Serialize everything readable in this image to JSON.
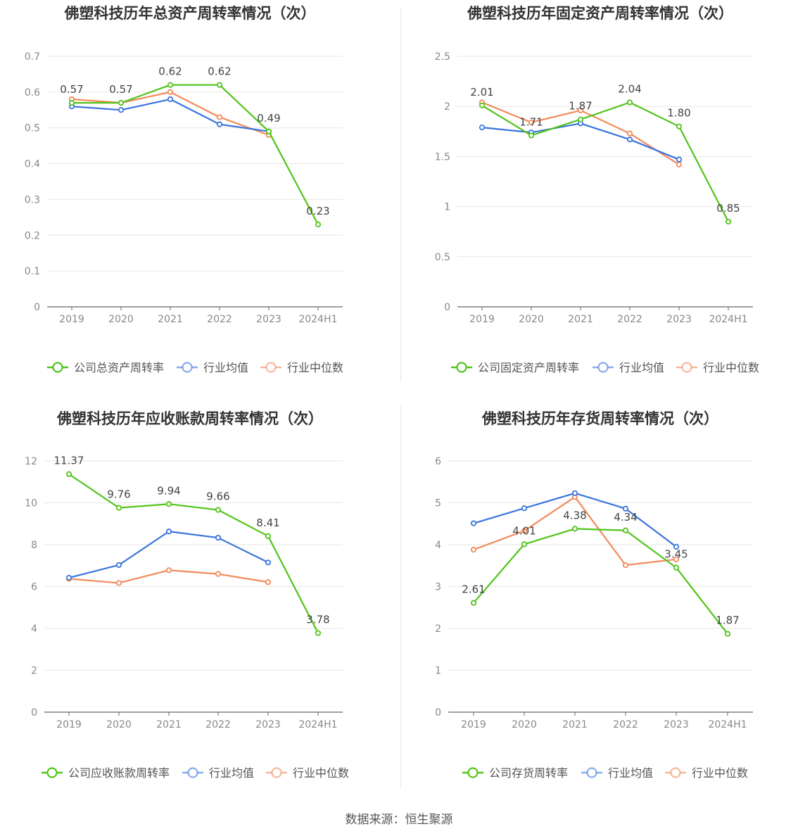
{
  "source": "数据来源：恒生聚源",
  "colors": {
    "company": "#52c41a",
    "avg": "#3a75dd",
    "median": "#f28a5b",
    "grid": "#e6e6e6",
    "axis": "#666666",
    "text": "#555555"
  },
  "chart_data": [
    {
      "type": "line",
      "title": "佛塑科技历年总资产周转率情况（次）",
      "categories": [
        "2019",
        "2020",
        "2021",
        "2022",
        "2023",
        "2024H1"
      ],
      "ylim": [
        0,
        0.7
      ],
      "yticks": [
        0,
        0.1,
        0.2,
        0.3,
        0.4,
        0.5,
        0.6,
        0.7
      ],
      "ytick_labels": [
        "0",
        "0.1",
        "0.2",
        "0.3",
        "0.4",
        "0.5",
        "0.6",
        "0.7"
      ],
      "grid": true,
      "legend_position": "bottom",
      "series": [
        {
          "name": "公司总资产周转率",
          "role": "company",
          "values": [
            0.57,
            0.57,
            0.62,
            0.62,
            0.49,
            0.23
          ],
          "labels": [
            "0.57",
            "0.57",
            "0.62",
            "0.62",
            "0.49",
            "0.23"
          ]
        },
        {
          "name": "行业均值",
          "role": "avg",
          "values": [
            0.56,
            0.55,
            0.58,
            0.51,
            0.49,
            null
          ]
        },
        {
          "name": "行业中位数",
          "role": "median",
          "values": [
            0.58,
            0.57,
            0.6,
            0.53,
            0.48,
            null
          ]
        }
      ]
    },
    {
      "type": "line",
      "title": "佛塑科技历年固定资产周转率情况（次）",
      "categories": [
        "2019",
        "2020",
        "2021",
        "2022",
        "2023",
        "2024H1"
      ],
      "ylim": [
        0,
        2.5
      ],
      "yticks": [
        0,
        0.5,
        1,
        1.5,
        2,
        2.5
      ],
      "ytick_labels": [
        "0",
        "0.5",
        "1",
        "1.5",
        "2",
        "2.5"
      ],
      "grid": true,
      "legend_position": "bottom",
      "series": [
        {
          "name": "公司固定资产周转率",
          "role": "company",
          "values": [
            2.01,
            1.71,
            1.87,
            2.04,
            1.8,
            0.85
          ],
          "labels": [
            "2.01",
            "1.71",
            "1.87",
            "2.04",
            "1.80",
            "0.85"
          ]
        },
        {
          "name": "行业均值",
          "role": "avg",
          "values": [
            1.79,
            1.74,
            1.83,
            1.67,
            1.47,
            null
          ]
        },
        {
          "name": "行业中位数",
          "role": "median",
          "values": [
            2.04,
            1.84,
            1.96,
            1.73,
            1.42,
            null
          ]
        }
      ]
    },
    {
      "type": "line",
      "title": "佛塑科技历年应收账款周转率情况（次）",
      "categories": [
        "2019",
        "2020",
        "2021",
        "2022",
        "2023",
        "2024H1"
      ],
      "ylim": [
        0,
        12
      ],
      "yticks": [
        0,
        2,
        4,
        6,
        8,
        10,
        12
      ],
      "ytick_labels": [
        "0",
        "2",
        "4",
        "6",
        "8",
        "10",
        "12"
      ],
      "grid": true,
      "legend_position": "bottom",
      "series": [
        {
          "name": "公司应收账款周转率",
          "role": "company",
          "values": [
            11.37,
            9.76,
            9.94,
            9.66,
            8.41,
            3.78
          ],
          "labels": [
            "11.37",
            "9.76",
            "9.94",
            "9.66",
            "8.41",
            "3.78"
          ]
        },
        {
          "name": "行业均值",
          "role": "avg",
          "values": [
            6.42,
            7.03,
            8.63,
            8.33,
            7.15,
            null
          ]
        },
        {
          "name": "行业中位数",
          "role": "median",
          "values": [
            6.37,
            6.17,
            6.78,
            6.6,
            6.21,
            null
          ]
        }
      ]
    },
    {
      "type": "line",
      "title": "佛塑科技历年存货周转率情况（次）",
      "categories": [
        "2019",
        "2020",
        "2021",
        "2022",
        "2023",
        "2024H1"
      ],
      "ylim": [
        0,
        6
      ],
      "yticks": [
        0,
        1,
        2,
        3,
        4,
        5,
        6
      ],
      "ytick_labels": [
        "0",
        "1",
        "2",
        "3",
        "4",
        "5",
        "6"
      ],
      "grid": true,
      "legend_position": "bottom",
      "series": [
        {
          "name": "公司存货周转率",
          "role": "company",
          "values": [
            2.61,
            4.01,
            4.38,
            4.34,
            3.45,
            1.87
          ],
          "labels": [
            "2.61",
            "4.01",
            "4.38",
            "4.34",
            "3.45",
            "1.87"
          ]
        },
        {
          "name": "行业均值",
          "role": "avg",
          "values": [
            4.51,
            4.87,
            5.23,
            4.86,
            3.95,
            null
          ]
        },
        {
          "name": "行业中位数",
          "role": "median",
          "values": [
            3.88,
            4.33,
            5.14,
            3.51,
            3.65,
            null
          ]
        }
      ]
    }
  ]
}
